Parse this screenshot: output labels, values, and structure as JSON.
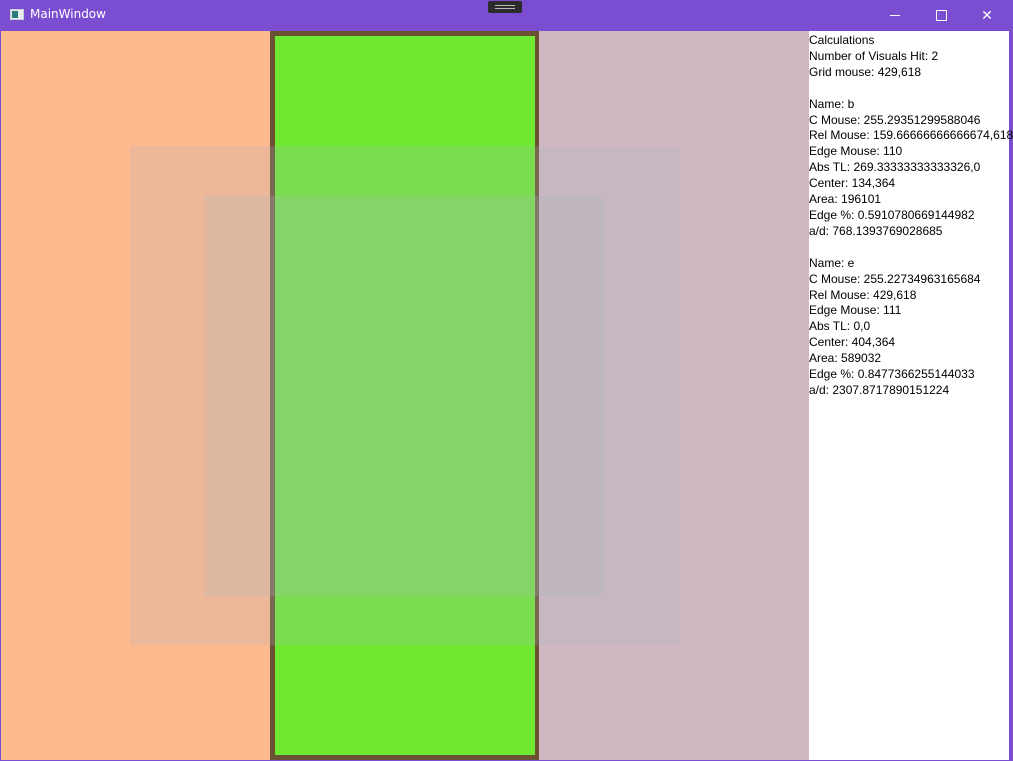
{
  "window": {
    "title": "MainWindow",
    "icon": "app-window-icon",
    "controls": [
      "minimize-icon",
      "maximize-icon",
      "close-icon"
    ]
  },
  "colors": {
    "titlebar": "#7B4DD0",
    "left": "#FFB98F",
    "center_border": "#6B5233",
    "center": "#6EE830",
    "right": "#CFB8C0"
  },
  "panel": {
    "heading": "Calculations",
    "visuals_hit": "Number of Visuals Hit: 2",
    "grid_mouse": "Grid mouse: 429,618",
    "items": [
      {
        "name": "Name: b",
        "c_mouse": "C Mouse: 255.29351299588046",
        "rel_mouse": "Rel Mouse: 159.66666666666674,618",
        "edge_mouse": "Edge Mouse: 110",
        "abs_tl": "Abs TL: 269.33333333333326,0",
        "center": "Center: 134,364",
        "area": "Area: 196101",
        "edge_pct": "Edge %: 0.5910780669144982",
        "ad": "a/d: 768.1393769028685"
      },
      {
        "name": "Name: e",
        "c_mouse": "C Mouse: 255.22734963165684",
        "rel_mouse": "Rel Mouse: 429,618",
        "edge_mouse": "Edge Mouse: 111",
        "abs_tl": "Abs TL: 0,0",
        "center": "Center: 404,364",
        "area": "Area: 589032",
        "edge_pct": "Edge %: 0.8477366255144033",
        "ad": "a/d: 2307.8717890151224"
      }
    ]
  }
}
